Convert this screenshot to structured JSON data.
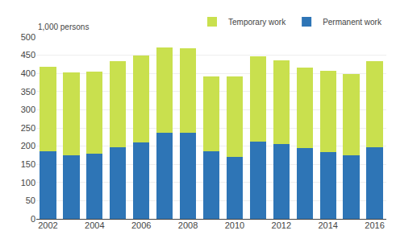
{
  "chart_data": {
    "type": "bar",
    "stacked": true,
    "ylabel": "1,000 persons",
    "categories": [
      "2002",
      null,
      "2004",
      null,
      "2006",
      null,
      "2008",
      null,
      "2010",
      null,
      "2012",
      null,
      "2014",
      null,
      "2016"
    ],
    "series": [
      {
        "name": "Permanent work",
        "color": "#2E75B6",
        "values": [
          186,
          175,
          180,
          198,
          210,
          237,
          236,
          186,
          170,
          212,
          206,
          195,
          184,
          175,
          198
        ]
      },
      {
        "name": "Temporary work",
        "color": "#C9E04E",
        "values": [
          232,
          228,
          225,
          235,
          240,
          235,
          233,
          206,
          222,
          235,
          230,
          220,
          222,
          223,
          235
        ]
      }
    ],
    "ylim": [
      0,
      500
    ],
    "yticks": [
      0,
      50,
      100,
      150,
      200,
      250,
      300,
      350,
      400,
      450,
      500
    ],
    "grid": true,
    "legend": "upper right"
  }
}
